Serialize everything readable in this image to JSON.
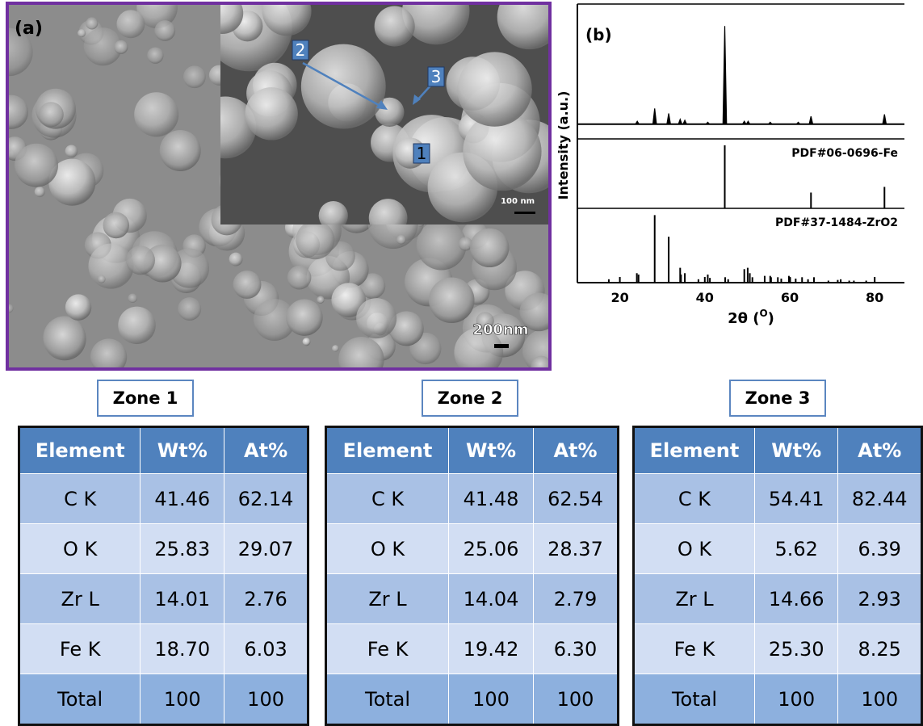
{
  "panel_a": {
    "label": "(a)",
    "markers": [
      "1",
      "2",
      "3"
    ],
    "inset_scale": "100 nm",
    "scale": "200nm"
  },
  "chart_data": {
    "type": "xrd",
    "label": "(b)",
    "ylabel": "Intensity (a.u.)",
    "xlabel": [
      "2θ (",
      "O",
      ")"
    ],
    "xlim": [
      10,
      87
    ],
    "xticks": [
      20,
      40,
      60,
      80
    ],
    "series": [
      {
        "type": "line",
        "color": "#000000",
        "ylim": [
          -15,
          120
        ],
        "x": [
          24.1,
          28.2,
          31.5,
          34.2,
          35.3,
          40.7,
          44.7,
          49.3,
          50.2,
          55.4,
          62.0,
          65.0,
          82.3
        ],
        "values": [
          3,
          16,
          11,
          5,
          4,
          2,
          100,
          3,
          3,
          2,
          2,
          8,
          10
        ]
      },
      {
        "type": "stem",
        "name": "PDF#06-0696-Fe",
        "color": "#000000",
        "ylim": [
          0,
          110
        ],
        "x": [
          44.7,
          65.0,
          82.3
        ],
        "values": [
          100,
          25,
          34
        ]
      },
      {
        "type": "stem",
        "name": "PDF#37-1484-ZrO2",
        "color": "#000000",
        "ylim": [
          0,
          110
        ],
        "x": [
          17.4,
          24.0,
          24.4,
          28.2,
          31.5,
          34.2,
          34.4,
          35.3,
          38.5,
          40.7,
          41.2,
          44.8,
          45.5,
          49.3,
          50.1,
          50.6,
          51.2,
          54.1,
          55.4,
          55.6,
          57.2,
          58.0,
          59.8,
          60.1,
          61.4,
          62.9,
          64.3,
          65.7,
          69.1,
          71.3,
          72.0,
          74.0,
          75.1,
          78.0
        ],
        "values": [
          5,
          14,
          12,
          100,
          68,
          22,
          12,
          14,
          5,
          12,
          7,
          8,
          5,
          20,
          22,
          14,
          8,
          10,
          10,
          8,
          8,
          6,
          10,
          8,
          6,
          8,
          5,
          8,
          3,
          4,
          5,
          3,
          3,
          3
        ]
      }
    ]
  },
  "tables": [
    {
      "zone": "Zone 1",
      "header": [
        "Element",
        "Wt%",
        "At%"
      ],
      "rows": [
        [
          "C K",
          "41.46",
          "62.14"
        ],
        [
          "O K",
          "25.83",
          "29.07"
        ],
        [
          "Zr L",
          "14.01",
          "2.76"
        ],
        [
          "Fe K",
          "18.70",
          "6.03"
        ],
        [
          "Total",
          "100",
          "100"
        ]
      ]
    },
    {
      "zone": "Zone 2",
      "header": [
        "Element",
        "Wt%",
        "At%"
      ],
      "rows": [
        [
          "C K",
          "41.48",
          "62.54"
        ],
        [
          "O K",
          "25.06",
          "28.37"
        ],
        [
          "Zr L",
          "14.04",
          "2.79"
        ],
        [
          "Fe K",
          "19.42",
          "6.30"
        ],
        [
          "Total",
          "100",
          "100"
        ]
      ]
    },
    {
      "zone": "Zone 3",
      "header": [
        "Element",
        "Wt%",
        "At%"
      ],
      "rows": [
        [
          "C K",
          "54.41",
          "82.44"
        ],
        [
          "O K",
          "5.62",
          "6.39"
        ],
        [
          "Zr L",
          "14.66",
          "2.93"
        ],
        [
          "Fe K",
          "25.30",
          "8.25"
        ],
        [
          "Total",
          "100",
          "100"
        ]
      ]
    }
  ]
}
